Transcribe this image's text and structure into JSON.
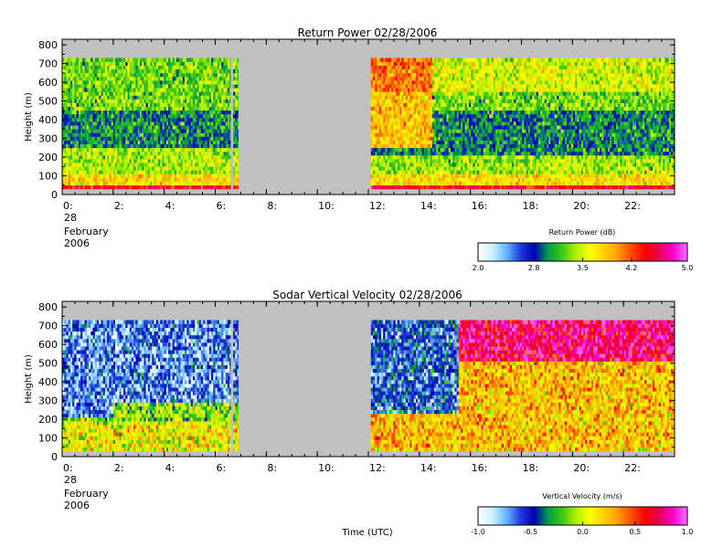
{
  "chart_data": [
    {
      "type": "heatmap",
      "title": "Return Power 02/28/2006",
      "ylabel": "Height (m)",
      "xlabel": "",
      "x_tick_labels": [
        "0:",
        "2:",
        "4:",
        "6:",
        "8:",
        "10:",
        "12:",
        "14:",
        "16:",
        "18:",
        "20:",
        "22:"
      ],
      "x_ticks_hours": [
        0,
        2,
        4,
        6,
        8,
        10,
        12,
        14,
        16,
        18,
        20,
        22
      ],
      "date_label_day": "28",
      "date_label_month": "February",
      "date_label_year": "2006",
      "xlim_hours": [
        0,
        24
      ],
      "y_ticks": [
        0,
        100,
        200,
        300,
        400,
        500,
        600,
        700,
        800
      ],
      "ylim": [
        0,
        830
      ],
      "data_height_range": [
        30,
        720
      ],
      "data_periods_hours": [
        [
          0,
          6.6
        ],
        [
          6.7,
          6.9
        ],
        [
          12.1,
          24
        ]
      ],
      "no_data_color": "#c0c0c0",
      "colorbar": {
        "label": "Return Power (dB)",
        "range": [
          2.0,
          5.0
        ],
        "tick_labels": [
          "2.0",
          "2.8",
          "3.5",
          "4.2",
          "5.0"
        ],
        "tick_values": [
          2.0,
          2.8,
          3.5,
          4.2,
          5.0
        ]
      }
    },
    {
      "type": "heatmap",
      "title": "Sodar Vertical Velocity 02/28/2006",
      "ylabel": "Height (m)",
      "xlabel": "Time (UTC)",
      "x_tick_labels": [
        "0:",
        "2:",
        "4:",
        "6:",
        "8:",
        "10:",
        "12:",
        "14:",
        "16:",
        "18:",
        "20:",
        "22:"
      ],
      "x_ticks_hours": [
        0,
        2,
        4,
        6,
        8,
        10,
        12,
        14,
        16,
        18,
        20,
        22
      ],
      "date_label_day": "28",
      "date_label_month": "February",
      "date_label_year": "2006",
      "xlim_hours": [
        0,
        24
      ],
      "y_ticks": [
        0,
        100,
        200,
        300,
        400,
        500,
        600,
        700,
        800
      ],
      "ylim": [
        0,
        830
      ],
      "data_height_range": [
        30,
        720
      ],
      "data_periods_hours": [
        [
          0,
          6.6
        ],
        [
          6.7,
          6.9
        ],
        [
          12.1,
          24
        ]
      ],
      "no_data_color": "#c0c0c0",
      "colorbar": {
        "label": "Vertical Velocity (m/s)",
        "range": [
          -1.0,
          1.0
        ],
        "tick_labels": [
          "-1.0",
          "-0.5",
          "0.0",
          "0.5",
          "1.0"
        ],
        "tick_values": [
          -1.0,
          -0.5,
          0.0,
          0.5,
          1.0
        ]
      }
    }
  ],
  "colormap": [
    "#ffffff",
    "#c8f0ff",
    "#64b4ff",
    "#1e3cdc",
    "#0000b4",
    "#00a046",
    "#3cc814",
    "#aaf000",
    "#ffff00",
    "#ffd200",
    "#ffa000",
    "#ff5000",
    "#ff0000",
    "#e60050",
    "#ff00c8",
    "#ff64ff"
  ]
}
